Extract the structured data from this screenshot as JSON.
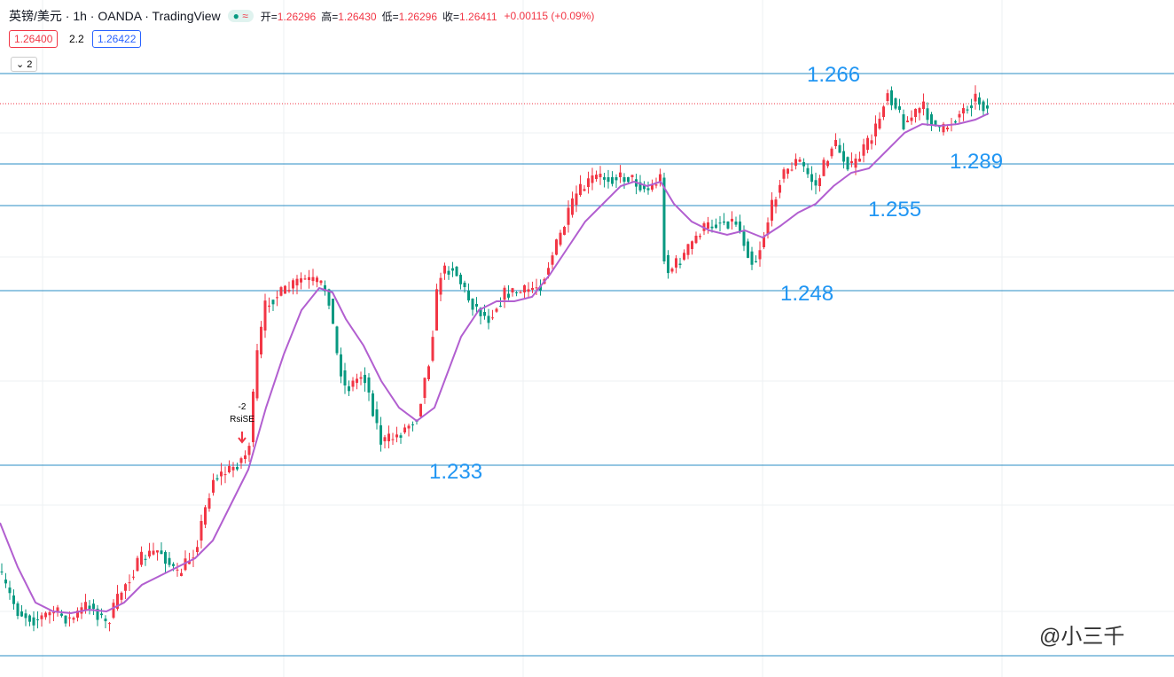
{
  "header": {
    "symbol": "英镑/美元 · 1h · OANDA · TradingView",
    "ohlc": [
      {
        "label": "开=",
        "value": "1.26296"
      },
      {
        "label": "高=",
        "value": "1.26430"
      },
      {
        "label": "低=",
        "value": "1.26296"
      },
      {
        "label": "收=",
        "value": "1.26411"
      }
    ],
    "change": "+0.00115 (+0.09%)",
    "sell": "1.26400",
    "spread": "2.2",
    "buy": "1.26422",
    "indicators_count": "2"
  },
  "levels": [
    {
      "label": "1.266"
    },
    {
      "label": "1.289"
    },
    {
      "label": "1.255"
    },
    {
      "label": "1.248"
    },
    {
      "label": "1.233"
    }
  ],
  "signal": {
    "value": "-2",
    "name": "RsiSE"
  },
  "watermark": "@小三千"
}
